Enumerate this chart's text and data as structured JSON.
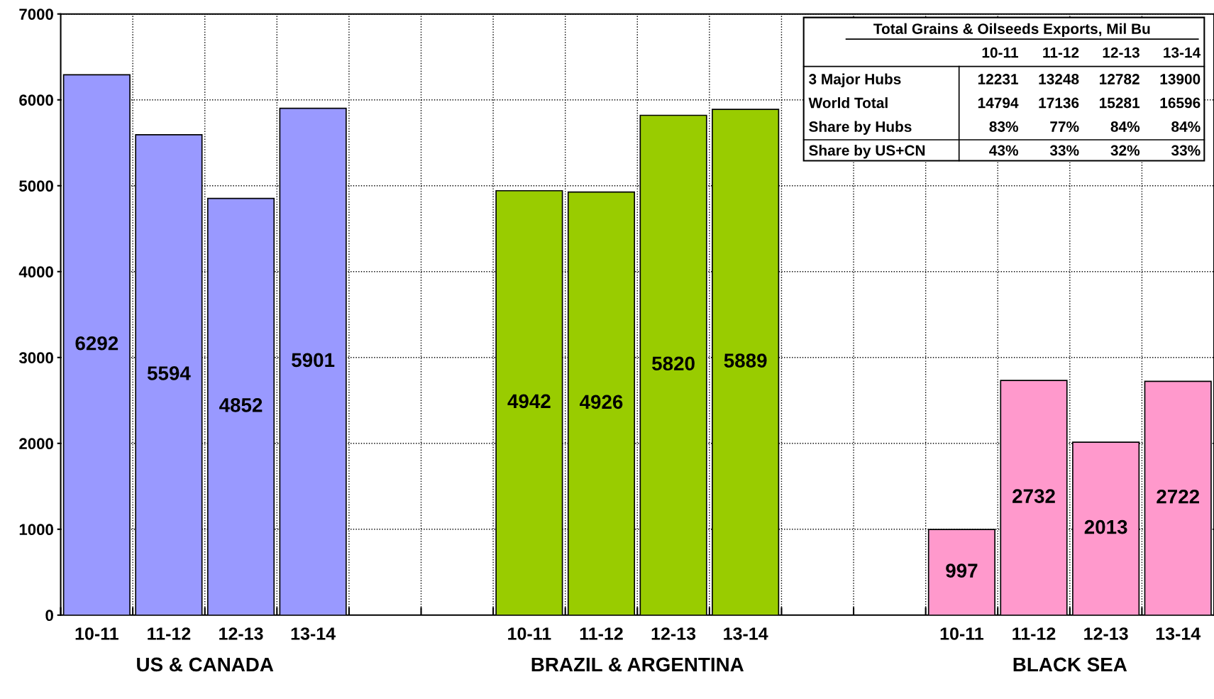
{
  "chart_data": {
    "type": "bar",
    "categories": [
      "10-11",
      "11-12",
      "12-13",
      "13-14",
      null,
      null,
      "10-11",
      "11-12",
      "12-13",
      "13-14",
      null,
      null,
      "10-11",
      "11-12",
      "12-13",
      "13-14"
    ],
    "series": [
      {
        "color": "#9999ff",
        "values": [
          6292,
          5594,
          4852,
          5901,
          null,
          null,
          null,
          null,
          null,
          null,
          null,
          null,
          null,
          null,
          null,
          null
        ]
      },
      {
        "color": "#99cc00",
        "values": [
          null,
          null,
          null,
          null,
          null,
          null,
          4942,
          4926,
          5820,
          5889,
          null,
          null,
          null,
          null,
          null,
          null
        ]
      },
      {
        "color": "#ff99cc",
        "values": [
          null,
          null,
          null,
          null,
          null,
          null,
          null,
          null,
          null,
          null,
          null,
          null,
          997,
          2732,
          2013,
          2722
        ]
      }
    ],
    "ylim": [
      0,
      7000
    ],
    "yticks": [
      0,
      1000,
      2000,
      3000,
      4000,
      5000,
      6000,
      7000
    ],
    "grid": true,
    "data_labels": true,
    "annotations": [
      "US & CANADA",
      "BRAZIL & ARGENTINA",
      "BLACK SEA",
      "Total Grains & Oilseeds Exports, Mil Bu",
      "10-11",
      "11-12",
      "12-13",
      "13-14",
      "3 Major Hubs",
      "12231",
      "13248",
      "12782",
      "13900",
      "World Total",
      "14794",
      "17136",
      "15281",
      "16596",
      "Share by Hubs",
      "83%",
      "77%",
      "84%",
      "84%",
      "Share by US+CN",
      "43%",
      "33%",
      "32%",
      "33%"
    ]
  }
}
